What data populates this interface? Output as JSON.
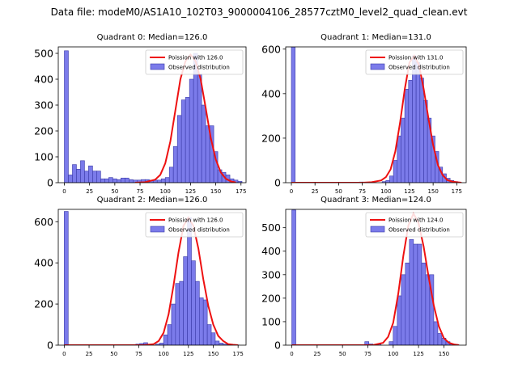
{
  "suptitle": "Data file: modeM0/AS1A10_102T03_9000004106_28577cztM0_level2_quad_clean.evt",
  "colors": {
    "hist_fill": "#7b7bea",
    "hist_edge": "#3a3aa8",
    "poisson_line": "#ee1111"
  },
  "chart_data": [
    {
      "type": "bar",
      "title": "Quadrant 0: Median=126.0",
      "legend": [
        "Poission with 126.0",
        "Observed distribution"
      ],
      "legend_position": "top-right",
      "bin_width": 4,
      "bins": [
        0,
        4,
        8,
        12,
        16,
        20,
        24,
        28,
        32,
        36,
        40,
        44,
        48,
        52,
        56,
        60,
        64,
        68,
        72,
        76,
        80,
        84,
        88,
        92,
        96,
        100,
        104,
        108,
        112,
        116,
        120,
        124,
        128,
        132,
        136,
        140,
        144,
        148,
        152,
        156,
        160,
        164,
        168,
        172
      ],
      "values": [
        510,
        30,
        70,
        52,
        85,
        45,
        65,
        45,
        45,
        15,
        15,
        20,
        15,
        12,
        18,
        18,
        12,
        10,
        10,
        12,
        12,
        10,
        10,
        10,
        15,
        20,
        60,
        140,
        260,
        320,
        330,
        400,
        500,
        420,
        300,
        220,
        220,
        120,
        50,
        40,
        30,
        15,
        10,
        5
      ],
      "poisson_curve": {
        "x": [
          70,
          80,
          90,
          95,
          100,
          105,
          110,
          115,
          120,
          125,
          130,
          135,
          140,
          145,
          150,
          155,
          160,
          165,
          170
        ],
        "y": [
          0,
          2,
          12,
          30,
          75,
          160,
          280,
          400,
          470,
          495,
          470,
          400,
          290,
          175,
          90,
          40,
          15,
          5,
          1
        ]
      },
      "xticks": [
        0,
        25,
        50,
        75,
        100,
        125,
        150,
        175
      ],
      "yticks": [
        0,
        100,
        200,
        300,
        400,
        500
      ],
      "xlim": [
        -6,
        180
      ],
      "ylim": [
        0,
        525
      ]
    },
    {
      "type": "bar",
      "title": "Quadrant 1: Median=131.0",
      "legend": [
        "Poission with 131.0",
        "Observed distribution"
      ],
      "legend_position": "top-right",
      "bin_width": 4,
      "bins": [
        0,
        4,
        8,
        12,
        16,
        20,
        24,
        28,
        32,
        36,
        40,
        44,
        48,
        52,
        56,
        60,
        64,
        68,
        72,
        76,
        80,
        84,
        88,
        92,
        96,
        100,
        104,
        108,
        112,
        116,
        120,
        124,
        128,
        132,
        136,
        140,
        144,
        148,
        152,
        156,
        160,
        164,
        168,
        172
      ],
      "values": [
        610,
        0,
        0,
        0,
        0,
        0,
        0,
        0,
        0,
        0,
        0,
        0,
        0,
        0,
        0,
        0,
        0,
        0,
        3,
        0,
        0,
        3,
        0,
        0,
        5,
        10,
        30,
        100,
        210,
        290,
        420,
        460,
        570,
        540,
        470,
        370,
        290,
        210,
        140,
        70,
        40,
        20,
        10,
        5
      ],
      "poisson_curve": {
        "x": [
          0,
          75,
          85,
          95,
          100,
          105,
          110,
          115,
          120,
          125,
          130,
          135,
          140,
          145,
          150,
          155,
          160,
          165,
          170,
          175,
          180
        ],
        "y": [
          0,
          0,
          2,
          10,
          25,
          60,
          140,
          270,
          420,
          540,
          570,
          530,
          420,
          290,
          170,
          80,
          35,
          12,
          5,
          2,
          0
        ]
      },
      "xticks": [
        0,
        25,
        50,
        75,
        100,
        125,
        150,
        175
      ],
      "yticks": [
        0,
        200,
        400,
        600
      ],
      "xlim": [
        -6,
        185
      ],
      "ylim": [
        0,
        610
      ]
    },
    {
      "type": "bar",
      "title": "Quadrant 2: Median=126.0",
      "legend": [
        "Poission with 126.0",
        "Observed distribution"
      ],
      "legend_position": "top-right",
      "bin_width": 4,
      "bins": [
        0,
        4,
        8,
        12,
        16,
        20,
        24,
        28,
        32,
        36,
        40,
        44,
        48,
        52,
        56,
        60,
        64,
        68,
        72,
        76,
        80,
        84,
        88,
        92,
        96,
        100,
        104,
        108,
        112,
        116,
        120,
        124,
        128,
        132,
        136,
        140,
        144,
        148,
        152,
        156,
        160,
        164,
        168,
        172
      ],
      "values": [
        650,
        0,
        0,
        0,
        0,
        0,
        0,
        0,
        0,
        0,
        0,
        0,
        0,
        0,
        0,
        0,
        0,
        0,
        5,
        8,
        12,
        0,
        0,
        5,
        10,
        50,
        100,
        200,
        300,
        310,
        430,
        620,
        410,
        310,
        230,
        220,
        100,
        60,
        20,
        10,
        5,
        3,
        2,
        1
      ],
      "poisson_curve": {
        "x": [
          0,
          80,
          90,
          95,
          100,
          105,
          110,
          115,
          120,
          125,
          130,
          135,
          140,
          145,
          150,
          155,
          160,
          165,
          170,
          175
        ],
        "y": [
          0,
          0,
          5,
          20,
          60,
          150,
          290,
          450,
          580,
          620,
          580,
          470,
          320,
          190,
          100,
          45,
          20,
          5,
          2,
          0
        ]
      },
      "xticks": [
        0,
        25,
        50,
        75,
        100,
        125,
        150,
        175
      ],
      "yticks": [
        0,
        200,
        400,
        600
      ],
      "xlim": [
        -6,
        183
      ],
      "ylim": [
        0,
        660
      ]
    },
    {
      "type": "bar",
      "title": "Quadrant 3: Median=124.0",
      "legend": [
        "Poission with 124.0",
        "Observed distribution"
      ],
      "legend_position": "top-right",
      "bin_width": 4,
      "bins": [
        0,
        4,
        8,
        12,
        16,
        20,
        24,
        28,
        32,
        36,
        40,
        44,
        48,
        52,
        56,
        60,
        64,
        68,
        72,
        76,
        80,
        84,
        88,
        92,
        96,
        100,
        104,
        108,
        112,
        116,
        120,
        124,
        128,
        132,
        136,
        140,
        144,
        148,
        152,
        156,
        160
      ],
      "values": [
        575,
        0,
        0,
        0,
        0,
        0,
        0,
        0,
        0,
        0,
        0,
        0,
        0,
        0,
        0,
        0,
        0,
        0,
        15,
        5,
        0,
        5,
        0,
        0,
        15,
        80,
        210,
        300,
        350,
        450,
        430,
        430,
        350,
        300,
        300,
        100,
        50,
        30,
        15,
        5,
        3
      ],
      "poisson_curve": {
        "x": [
          0,
          80,
          90,
          95,
          100,
          105,
          110,
          115,
          120,
          125,
          130,
          135,
          140,
          145,
          150,
          155,
          160,
          165
        ],
        "y": [
          0,
          0,
          10,
          35,
          95,
          220,
          380,
          510,
          560,
          520,
          420,
          290,
          170,
          80,
          30,
          10,
          3,
          0
        ]
      },
      "xticks": [
        0,
        25,
        50,
        75,
        100,
        125,
        150
      ],
      "yticks": [
        0,
        100,
        200,
        300,
        400,
        500
      ],
      "xlim": [
        -6,
        172
      ],
      "ylim": [
        0,
        578
      ]
    }
  ]
}
